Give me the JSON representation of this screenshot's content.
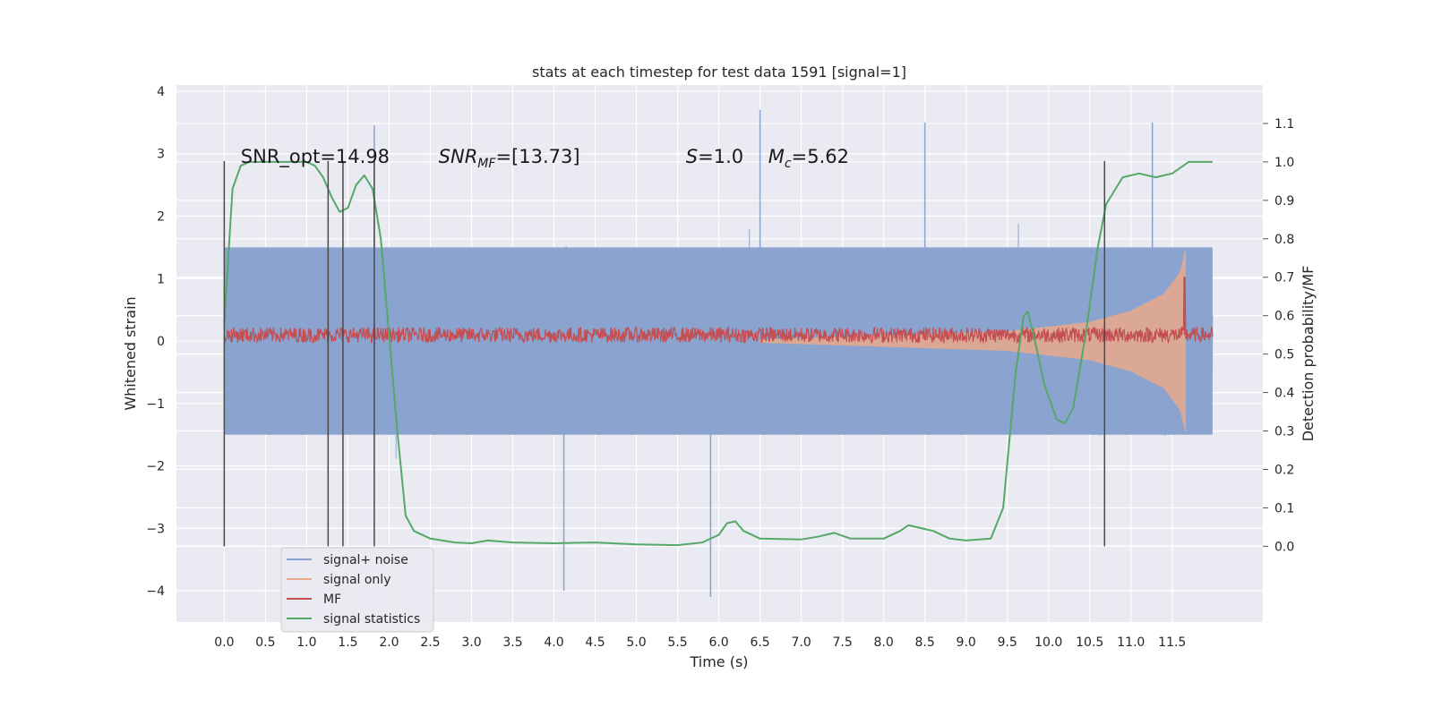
{
  "chart_data": {
    "type": "line",
    "title": "stats at each timestep for test data 1591 [signal=1]",
    "xlabel": "Time (s)",
    "ylabel": "Whitened strain",
    "ylabel_right": "Detection probability/MF",
    "xlim": [
      -0.58,
      12.6
    ],
    "ylim": [
      -4.5,
      4.1
    ],
    "ylim_right": [
      -0.197,
      1.2
    ],
    "x_ticks": [
      "0.0",
      "0.5",
      "1.0",
      "1.5",
      "2.0",
      "2.5",
      "3.0",
      "3.5",
      "4.0",
      "4.5",
      "5.0",
      "5.5",
      "6.0",
      "6.5",
      "7.0",
      "7.5",
      "8.0",
      "8.5",
      "9.0",
      "9.5",
      "10.0",
      "10.5",
      "11.0",
      "11.5"
    ],
    "y_ticks": [
      "4",
      "3",
      "2",
      "1",
      "0",
      "−1",
      "−2",
      "−3",
      "−4"
    ],
    "y_ticks_right": [
      "0.0",
      "0.1",
      "0.2",
      "0.3",
      "0.4",
      "0.5",
      "0.6",
      "0.7",
      "0.8",
      "0.9",
      "1.0",
      "1.1"
    ],
    "grid": true,
    "legend_position": "lower-left",
    "annotations": [
      {
        "text": "SNR_opt=14.98"
      },
      {
        "text": "SNR_MF=[13.73]",
        "main": "SNR",
        "sub": "MF",
        "rest": "=[13.73]"
      },
      {
        "text": "S=1.0",
        "main": "S",
        "rest": "=1.0"
      },
      {
        "text": "M_c=5.62",
        "main": "M",
        "sub": "c",
        "rest": "=5.62"
      }
    ],
    "annotation_x": [
      0.2,
      2.6,
      5.6,
      6.6
    ],
    "annotation_y": 2.97,
    "event_lines_x": [
      0.0,
      1.26,
      1.44,
      1.82,
      10.68
    ],
    "series": [
      {
        "name": "signal+ noise",
        "color": "#8aa3cf",
        "kind": "noise",
        "x_range": [
          0.0,
          11.99
        ],
        "core_amplitude": 1.5,
        "peaks": [
          {
            "x": 1.82,
            "y": 3.45
          },
          {
            "x": 6.5,
            "y": 3.7
          },
          {
            "x": 8.5,
            "y": 3.5
          },
          {
            "x": 11.26,
            "y": 3.5
          },
          {
            "x": 4.12,
            "y": -4.0
          },
          {
            "x": 5.9,
            "y": -4.1
          }
        ]
      },
      {
        "name": "signal only",
        "color": "#e8a98c",
        "kind": "chirp",
        "x": [
          6.5,
          9.5,
          10.5,
          11.0,
          11.4,
          11.6,
          11.66
        ],
        "envelope": [
          0.02,
          0.15,
          0.3,
          0.48,
          0.75,
          1.1,
          1.45
        ]
      },
      {
        "name": "MF",
        "color": "#c44e52",
        "kind": "noisy",
        "x_range": [
          0.0,
          11.99
        ],
        "level": 0.55,
        "spread": 0.02,
        "spike": {
          "x": 11.65,
          "y": 0.7
        }
      },
      {
        "name": "signal statistics",
        "color": "#55a868",
        "kind": "line",
        "x": [
          0.0,
          0.1,
          0.2,
          0.3,
          0.5,
          0.8,
          1.0,
          1.1,
          1.2,
          1.3,
          1.4,
          1.5,
          1.6,
          1.7,
          1.8,
          1.9,
          2.0,
          2.1,
          2.2,
          2.3,
          2.5,
          2.8,
          3.0,
          3.2,
          3.5,
          4.0,
          4.5,
          5.0,
          5.5,
          5.8,
          6.0,
          6.1,
          6.2,
          6.3,
          6.5,
          7.0,
          7.2,
          7.4,
          7.6,
          8.0,
          8.2,
          8.3,
          8.5,
          8.6,
          8.8,
          9.0,
          9.3,
          9.45,
          9.6,
          9.7,
          9.75,
          9.85,
          9.95,
          10.1,
          10.2,
          10.3,
          10.45,
          10.6,
          10.7,
          10.9,
          11.1,
          11.3,
          11.5,
          11.7,
          11.99
        ],
        "y": [
          0.58,
          0.93,
          0.99,
          1.0,
          1.0,
          1.0,
          1.0,
          0.99,
          0.96,
          0.91,
          0.87,
          0.88,
          0.94,
          0.965,
          0.93,
          0.8,
          0.55,
          0.3,
          0.08,
          0.04,
          0.02,
          0.01,
          0.008,
          0.015,
          0.01,
          0.008,
          0.01,
          0.005,
          0.003,
          0.01,
          0.03,
          0.06,
          0.065,
          0.04,
          0.02,
          0.018,
          0.025,
          0.035,
          0.02,
          0.02,
          0.04,
          0.055,
          0.045,
          0.04,
          0.02,
          0.015,
          0.02,
          0.1,
          0.45,
          0.6,
          0.61,
          0.52,
          0.42,
          0.33,
          0.32,
          0.36,
          0.55,
          0.78,
          0.89,
          0.96,
          0.97,
          0.96,
          0.97,
          1.0,
          1.0
        ]
      }
    ]
  }
}
